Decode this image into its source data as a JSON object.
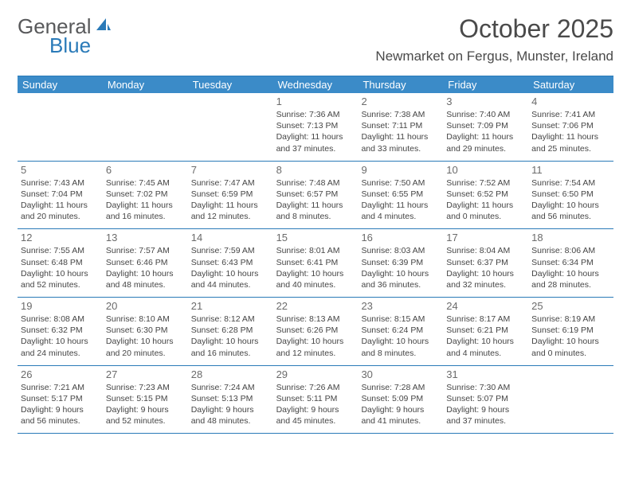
{
  "logo": {
    "text_general": "General",
    "text_blue": "Blue",
    "icon_color": "#2a7ab8"
  },
  "header": {
    "month_title": "October 2025",
    "location": "Newmarket on Fergus, Munster, Ireland"
  },
  "colors": {
    "header_bg": "#3b8bc8",
    "border": "#2a7ab8",
    "text": "#454545",
    "title_text": "#4a4a4a"
  },
  "day_labels": [
    "Sunday",
    "Monday",
    "Tuesday",
    "Wednesday",
    "Thursday",
    "Friday",
    "Saturday"
  ],
  "weeks": [
    [
      {
        "num": "",
        "sunrise": "",
        "sunset": "",
        "daylight": ""
      },
      {
        "num": "",
        "sunrise": "",
        "sunset": "",
        "daylight": ""
      },
      {
        "num": "",
        "sunrise": "",
        "sunset": "",
        "daylight": ""
      },
      {
        "num": "1",
        "sunrise": "Sunrise: 7:36 AM",
        "sunset": "Sunset: 7:13 PM",
        "daylight": "Daylight: 11 hours and 37 minutes."
      },
      {
        "num": "2",
        "sunrise": "Sunrise: 7:38 AM",
        "sunset": "Sunset: 7:11 PM",
        "daylight": "Daylight: 11 hours and 33 minutes."
      },
      {
        "num": "3",
        "sunrise": "Sunrise: 7:40 AM",
        "sunset": "Sunset: 7:09 PM",
        "daylight": "Daylight: 11 hours and 29 minutes."
      },
      {
        "num": "4",
        "sunrise": "Sunrise: 7:41 AM",
        "sunset": "Sunset: 7:06 PM",
        "daylight": "Daylight: 11 hours and 25 minutes."
      }
    ],
    [
      {
        "num": "5",
        "sunrise": "Sunrise: 7:43 AM",
        "sunset": "Sunset: 7:04 PM",
        "daylight": "Daylight: 11 hours and 20 minutes."
      },
      {
        "num": "6",
        "sunrise": "Sunrise: 7:45 AM",
        "sunset": "Sunset: 7:02 PM",
        "daylight": "Daylight: 11 hours and 16 minutes."
      },
      {
        "num": "7",
        "sunrise": "Sunrise: 7:47 AM",
        "sunset": "Sunset: 6:59 PM",
        "daylight": "Daylight: 11 hours and 12 minutes."
      },
      {
        "num": "8",
        "sunrise": "Sunrise: 7:48 AM",
        "sunset": "Sunset: 6:57 PM",
        "daylight": "Daylight: 11 hours and 8 minutes."
      },
      {
        "num": "9",
        "sunrise": "Sunrise: 7:50 AM",
        "sunset": "Sunset: 6:55 PM",
        "daylight": "Daylight: 11 hours and 4 minutes."
      },
      {
        "num": "10",
        "sunrise": "Sunrise: 7:52 AM",
        "sunset": "Sunset: 6:52 PM",
        "daylight": "Daylight: 11 hours and 0 minutes."
      },
      {
        "num": "11",
        "sunrise": "Sunrise: 7:54 AM",
        "sunset": "Sunset: 6:50 PM",
        "daylight": "Daylight: 10 hours and 56 minutes."
      }
    ],
    [
      {
        "num": "12",
        "sunrise": "Sunrise: 7:55 AM",
        "sunset": "Sunset: 6:48 PM",
        "daylight": "Daylight: 10 hours and 52 minutes."
      },
      {
        "num": "13",
        "sunrise": "Sunrise: 7:57 AM",
        "sunset": "Sunset: 6:46 PM",
        "daylight": "Daylight: 10 hours and 48 minutes."
      },
      {
        "num": "14",
        "sunrise": "Sunrise: 7:59 AM",
        "sunset": "Sunset: 6:43 PM",
        "daylight": "Daylight: 10 hours and 44 minutes."
      },
      {
        "num": "15",
        "sunrise": "Sunrise: 8:01 AM",
        "sunset": "Sunset: 6:41 PM",
        "daylight": "Daylight: 10 hours and 40 minutes."
      },
      {
        "num": "16",
        "sunrise": "Sunrise: 8:03 AM",
        "sunset": "Sunset: 6:39 PM",
        "daylight": "Daylight: 10 hours and 36 minutes."
      },
      {
        "num": "17",
        "sunrise": "Sunrise: 8:04 AM",
        "sunset": "Sunset: 6:37 PM",
        "daylight": "Daylight: 10 hours and 32 minutes."
      },
      {
        "num": "18",
        "sunrise": "Sunrise: 8:06 AM",
        "sunset": "Sunset: 6:34 PM",
        "daylight": "Daylight: 10 hours and 28 minutes."
      }
    ],
    [
      {
        "num": "19",
        "sunrise": "Sunrise: 8:08 AM",
        "sunset": "Sunset: 6:32 PM",
        "daylight": "Daylight: 10 hours and 24 minutes."
      },
      {
        "num": "20",
        "sunrise": "Sunrise: 8:10 AM",
        "sunset": "Sunset: 6:30 PM",
        "daylight": "Daylight: 10 hours and 20 minutes."
      },
      {
        "num": "21",
        "sunrise": "Sunrise: 8:12 AM",
        "sunset": "Sunset: 6:28 PM",
        "daylight": "Daylight: 10 hours and 16 minutes."
      },
      {
        "num": "22",
        "sunrise": "Sunrise: 8:13 AM",
        "sunset": "Sunset: 6:26 PM",
        "daylight": "Daylight: 10 hours and 12 minutes."
      },
      {
        "num": "23",
        "sunrise": "Sunrise: 8:15 AM",
        "sunset": "Sunset: 6:24 PM",
        "daylight": "Daylight: 10 hours and 8 minutes."
      },
      {
        "num": "24",
        "sunrise": "Sunrise: 8:17 AM",
        "sunset": "Sunset: 6:21 PM",
        "daylight": "Daylight: 10 hours and 4 minutes."
      },
      {
        "num": "25",
        "sunrise": "Sunrise: 8:19 AM",
        "sunset": "Sunset: 6:19 PM",
        "daylight": "Daylight: 10 hours and 0 minutes."
      }
    ],
    [
      {
        "num": "26",
        "sunrise": "Sunrise: 7:21 AM",
        "sunset": "Sunset: 5:17 PM",
        "daylight": "Daylight: 9 hours and 56 minutes."
      },
      {
        "num": "27",
        "sunrise": "Sunrise: 7:23 AM",
        "sunset": "Sunset: 5:15 PM",
        "daylight": "Daylight: 9 hours and 52 minutes."
      },
      {
        "num": "28",
        "sunrise": "Sunrise: 7:24 AM",
        "sunset": "Sunset: 5:13 PM",
        "daylight": "Daylight: 9 hours and 48 minutes."
      },
      {
        "num": "29",
        "sunrise": "Sunrise: 7:26 AM",
        "sunset": "Sunset: 5:11 PM",
        "daylight": "Daylight: 9 hours and 45 minutes."
      },
      {
        "num": "30",
        "sunrise": "Sunrise: 7:28 AM",
        "sunset": "Sunset: 5:09 PM",
        "daylight": "Daylight: 9 hours and 41 minutes."
      },
      {
        "num": "31",
        "sunrise": "Sunrise: 7:30 AM",
        "sunset": "Sunset: 5:07 PM",
        "daylight": "Daylight: 9 hours and 37 minutes."
      },
      {
        "num": "",
        "sunrise": "",
        "sunset": "",
        "daylight": ""
      }
    ]
  ]
}
